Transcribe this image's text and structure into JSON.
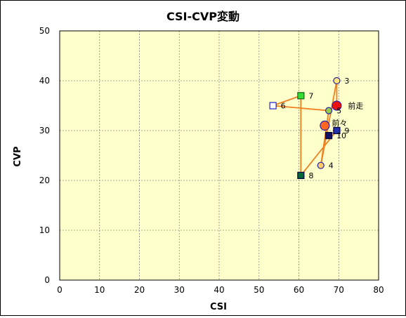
{
  "chart_data": {
    "type": "scatter",
    "title": "CSI-CVP変動",
    "xlabel": "CSI",
    "ylabel": "CVP",
    "xlim": [
      0,
      80
    ],
    "ylim": [
      0,
      50
    ],
    "xticks": [
      0,
      10,
      20,
      30,
      40,
      50,
      60,
      70,
      80
    ],
    "yticks": [
      0,
      10,
      20,
      30,
      40,
      50
    ],
    "grid": true,
    "path_order": [
      "前走",
      "3",
      "4",
      "5",
      "6",
      "7",
      "8",
      "9",
      "10",
      "前々"
    ],
    "points": [
      {
        "label": "3",
        "x": 69.5,
        "y": 40,
        "marker": "circle",
        "fill": "#FFE680",
        "stroke": "#2222AA",
        "size": "small"
      },
      {
        "label": "4",
        "x": 65.5,
        "y": 23,
        "marker": "circle",
        "fill": "#FFCC66",
        "stroke": "#2222AA",
        "size": "small"
      },
      {
        "label": "5",
        "x": 67.5,
        "y": 34,
        "marker": "circle",
        "fill": "#99CC44",
        "stroke": "#2222AA",
        "size": "small"
      },
      {
        "label": "6",
        "x": 53.5,
        "y": 35,
        "marker": "square",
        "fill": "#FFFFFF",
        "stroke": "#2222CC",
        "size": "small"
      },
      {
        "label": "7",
        "x": 60.5,
        "y": 37,
        "marker": "square",
        "fill": "#33DD33",
        "stroke": "#116611",
        "size": "small"
      },
      {
        "label": "8",
        "x": 60.5,
        "y": 21,
        "marker": "square",
        "fill": "#006633",
        "stroke": "#000044",
        "size": "small"
      },
      {
        "label": "9",
        "x": 69.5,
        "y": 30,
        "marker": "square",
        "fill": "#2233AA",
        "stroke": "#000044",
        "size": "small"
      },
      {
        "label": "10",
        "x": 67.5,
        "y": 29,
        "marker": "square",
        "fill": "#111166",
        "stroke": "#000033",
        "size": "small"
      },
      {
        "label": "前々",
        "x": 66.5,
        "y": 31,
        "marker": "circle",
        "fill": "#FF6622",
        "stroke": "#2222AA",
        "size": "large"
      },
      {
        "label": "前走",
        "x": 69.5,
        "y": 35,
        "marker": "circle",
        "fill": "#EE1111",
        "stroke": "#2222AA",
        "size": "large"
      }
    ],
    "colors": {
      "plot_background": "#FFFFCC",
      "path_line": "#F08020",
      "grid": "#888888",
      "page_background": "#FFFFFF"
    }
  }
}
